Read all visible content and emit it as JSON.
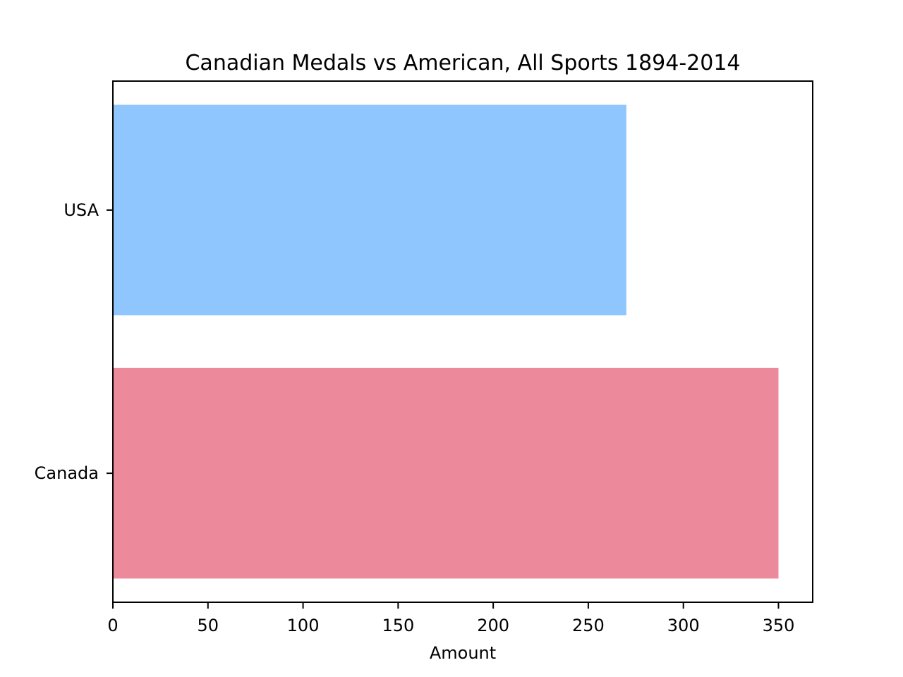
{
  "chart_data": {
    "type": "bar",
    "orientation": "horizontal",
    "title": "Canadian Medals vs American, All Sports 1894-2014",
    "xlabel": "Amount",
    "ylabel": "",
    "categories": [
      "Canada",
      "USA"
    ],
    "values": [
      350,
      270
    ],
    "colors": [
      "#ec899b",
      "#8ec6fd"
    ],
    "xlim": [
      0,
      368
    ],
    "xticks": [
      0,
      50,
      100,
      150,
      200,
      250,
      300,
      350
    ],
    "grid": false,
    "legend": "none"
  }
}
